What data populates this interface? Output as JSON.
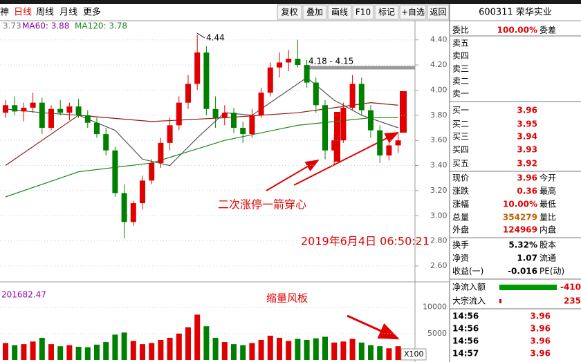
{
  "toolbar": {
    "tabs": [
      "神",
      "日线",
      "周线",
      "月线",
      "更多"
    ],
    "buttons": [
      "复权",
      "叠加",
      "画线",
      "F10",
      "标记",
      "+自选",
      "返回"
    ]
  },
  "chart_data": {
    "type": "candlestick",
    "legend": [
      "3.73",
      "MA60: 3.88",
      "MA120: 3.78"
    ],
    "annotations": {
      "high": "4.44",
      "range": "4.18 - 4.15",
      "main": "二次涨停一箭穿心",
      "date": "2019年6月4日  06:50:21",
      "volume_note": "缩量风板"
    },
    "ylim": [
      2.49,
      4.47
    ],
    "yticks": [
      {
        "value": 4.4,
        "label": "4.40"
      },
      {
        "value": 4.2,
        "label": "4.20"
      },
      {
        "value": 4.0,
        "label": "4.00"
      },
      {
        "value": 3.8,
        "label": "3.80"
      },
      {
        "value": 3.6,
        "label": "3.60"
      },
      {
        "value": 3.4,
        "label": "3.40"
      },
      {
        "value": 3.2,
        "label": "3.20"
      },
      {
        "value": 3.0,
        "label": "3.00"
      },
      {
        "value": 2.8,
        "label": "2.80"
      },
      {
        "value": 2.6,
        "label": "2.60"
      }
    ],
    "open": [
      3.82,
      3.88,
      3.83,
      3.86,
      3.9,
      3.7,
      3.85,
      3.82,
      3.87,
      3.8,
      3.74,
      3.65,
      3.52,
      3.18,
      2.95,
      3.1,
      3.28,
      3.42,
      3.58,
      3.72,
      3.9,
      4.05,
      4.3,
      3.85,
      3.78,
      3.82,
      3.7,
      3.65,
      3.8,
      3.98,
      4.18,
      4.22,
      4.25,
      4.2,
      4.06,
      3.88,
      3.52,
      3.6,
      3.86,
      4.05,
      3.84,
      3.68,
      3.48,
      3.56
    ],
    "high": [
      3.92,
      3.95,
      3.9,
      3.98,
      3.94,
      3.88,
      3.92,
      3.9,
      3.93,
      3.84,
      3.78,
      3.7,
      3.55,
      3.25,
      3.12,
      3.32,
      3.45,
      3.62,
      3.78,
      3.95,
      4.12,
      4.44,
      4.35,
      3.95,
      3.88,
      3.86,
      3.75,
      3.85,
      4.02,
      4.22,
      4.3,
      4.32,
      4.4,
      4.24,
      4.1,
      3.92,
      3.65,
      3.9,
      4.12,
      4.1,
      3.88,
      3.72,
      3.58,
      3.66
    ],
    "low": [
      3.78,
      3.8,
      3.75,
      3.82,
      3.65,
      3.68,
      3.8,
      3.76,
      3.78,
      3.7,
      3.62,
      3.48,
      3.15,
      2.82,
      2.92,
      3.05,
      3.25,
      3.38,
      3.52,
      3.68,
      3.85,
      4.0,
      3.8,
      3.7,
      3.72,
      3.66,
      3.58,
      3.62,
      3.78,
      3.95,
      4.1,
      4.15,
      4.18,
      4.02,
      3.82,
      3.45,
      3.4,
      3.58,
      3.84,
      3.8,
      3.62,
      3.42,
      3.44,
      3.5
    ],
    "close": [
      3.88,
      3.83,
      3.86,
      3.9,
      3.7,
      3.85,
      3.82,
      3.87,
      3.8,
      3.74,
      3.65,
      3.52,
      3.18,
      2.95,
      3.1,
      3.28,
      3.42,
      3.58,
      3.72,
      3.9,
      4.05,
      4.3,
      3.85,
      3.78,
      3.82,
      3.7,
      3.65,
      3.8,
      3.98,
      4.18,
      4.22,
      4.25,
      4.2,
      4.06,
      3.88,
      3.52,
      3.6,
      3.86,
      4.05,
      3.84,
      3.68,
      3.48,
      3.56,
      3.6
    ],
    "ma": [
      {
        "color": "#555555",
        "x": [
          0,
          4,
          8,
          12,
          15,
          18,
          21,
          24,
          27,
          30,
          33,
          36,
          39,
          43
        ],
        "values": [
          3.85,
          3.82,
          3.8,
          3.68,
          3.45,
          3.4,
          3.62,
          3.82,
          3.8,
          3.95,
          4.1,
          3.92,
          3.8,
          3.7
        ]
      },
      {
        "color": "#8b1a1a",
        "x": [
          0,
          8,
          16,
          24,
          32,
          40,
          43
        ],
        "values": [
          3.4,
          3.8,
          3.75,
          3.78,
          3.82,
          3.9,
          3.88
        ]
      },
      {
        "color": "#1a8a1a",
        "x": [
          0,
          8,
          16,
          24,
          32,
          40,
          43
        ],
        "values": [
          3.15,
          3.35,
          3.42,
          3.6,
          3.72,
          3.78,
          3.78
        ]
      }
    ],
    "volume": {
      "label": "201682.47",
      "unit": "X100",
      "ylim": [
        0,
        13900
      ],
      "yticks": [
        10000,
        5000
      ],
      "values": [
        3200,
        2800,
        3000,
        3500,
        4200,
        3000,
        2600,
        2800,
        2500,
        2400,
        2900,
        3400,
        4800,
        5200,
        3600,
        3000,
        3200,
        3800,
        4200,
        5000,
        6200,
        8600,
        6400,
        4200,
        3400,
        3000,
        2800,
        3200,
        3800,
        4600,
        4200,
        3600,
        4000,
        3800,
        4100,
        4400,
        3300,
        3500,
        4000,
        3300,
        2800,
        2600,
        2200,
        2600
      ]
    },
    "up_color": "#e00000",
    "down_color": "#008000"
  },
  "panel": {
    "title": "600311 荣华实业",
    "rows": [
      {
        "label": "委比",
        "value": "100.00%",
        "label2": "委差",
        "color": "#e00000"
      },
      {
        "label": "卖五"
      },
      {
        "label": "卖四"
      },
      {
        "label": "卖三"
      },
      {
        "label": "卖二"
      },
      {
        "label": "卖一"
      },
      {
        "label": "买一",
        "value": "3.96",
        "color": "#e00000"
      },
      {
        "label": "买二",
        "value": "3.95",
        "color": "#e00000"
      },
      {
        "label": "买三",
        "value": "3.94",
        "color": "#e00000"
      },
      {
        "label": "买四",
        "value": "3.93",
        "color": "#e00000"
      },
      {
        "label": "买五",
        "value": "3.92",
        "color": "#e00000"
      },
      {
        "label": "现价",
        "value": "3.96",
        "label2": "今开",
        "color": "#e00000"
      },
      {
        "label": "涨跌",
        "value": "0.36",
        "label2": "最高",
        "color": "#e00000"
      },
      {
        "label": "涨幅",
        "value": "10.00%",
        "label2": "最低",
        "color": "#e00000"
      },
      {
        "label": "总量",
        "value": "354279",
        "label2": "量比",
        "color": "#c06000"
      },
      {
        "label": "外盘",
        "value": "124969",
        "label2": "内盘",
        "color": "#e00000"
      },
      {
        "label": "换手",
        "value": "5.32%",
        "label2": "股本",
        "color": "#000000"
      },
      {
        "label": "净资",
        "value": "1.07",
        "label2": "流通",
        "color": "#000000"
      },
      {
        "label": "收益(一)",
        "value": "-0.016",
        "label2": "PE(动)",
        "color": "#000000"
      }
    ],
    "flows": [
      {
        "label": "净流入额",
        "value": "-410"
      },
      {
        "label": "大宗流入",
        "value": "235"
      }
    ],
    "trades": [
      {
        "time": "14:56",
        "price": "3.96"
      },
      {
        "time": "14:56",
        "price": "3.96"
      },
      {
        "time": "14:56",
        "price": "3.96"
      },
      {
        "time": "14:57",
        "price": "3.96"
      }
    ]
  }
}
